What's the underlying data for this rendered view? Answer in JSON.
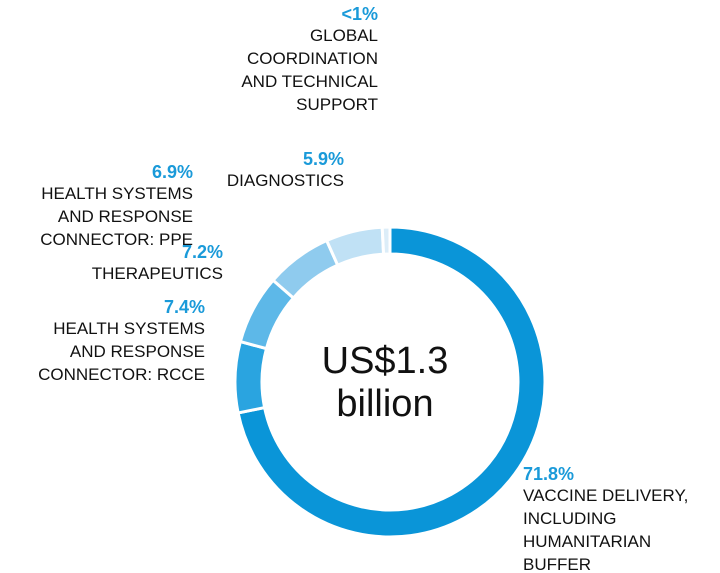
{
  "chart_data": {
    "type": "donut",
    "center_label": [
      "US$1.3",
      "billion"
    ],
    "categories": [
      [
        "VACCINE DELIVERY,",
        "INCLUDING",
        "HUMANITARIAN",
        "BUFFER"
      ],
      [
        "HEALTH SYSTEMS",
        "AND RESPONSE",
        "CONNECTOR: RCCE"
      ],
      [
        "THERAPEUTICS"
      ],
      [
        "HEALTH SYSTEMS",
        "AND RESPONSE",
        "CONNECTOR: PPE"
      ],
      [
        "DIAGNOSTICS"
      ],
      [
        "GLOBAL",
        "COORDINATION",
        "AND TECHNICAL",
        "SUPPORT"
      ]
    ],
    "values": [
      71.8,
      7.4,
      7.2,
      6.9,
      5.9,
      0.8
    ],
    "value_labels": [
      "71.8%",
      "7.4%",
      "7.2%",
      "6.9%",
      "5.9%",
      "<1%"
    ],
    "colors": [
      "#0a95d8",
      "#2aa4e0",
      "#5db8e8",
      "#8fcbee",
      "#c0e1f5",
      "#dcedf8"
    ]
  }
}
